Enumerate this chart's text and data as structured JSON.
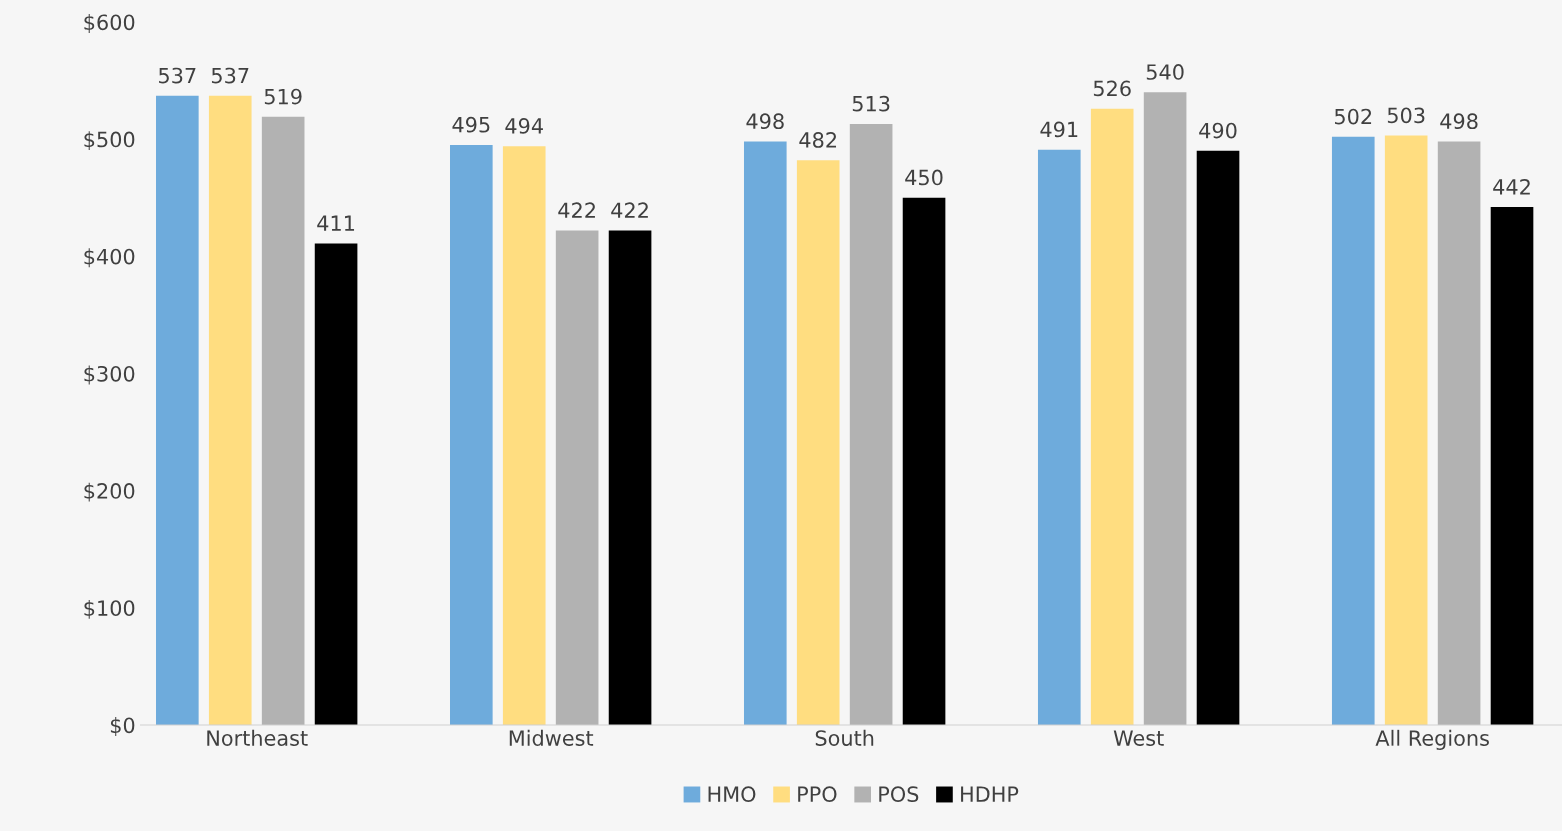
{
  "chart_data": {
    "type": "bar",
    "categories": [
      "Northeast",
      "Midwest",
      "South",
      "West",
      "All Regions"
    ],
    "series": [
      {
        "name": "HMO",
        "color": "#6eabdc",
        "values": [
          537,
          495,
          498,
          491,
          502
        ]
      },
      {
        "name": "PPO",
        "color": "#ffdd80",
        "values": [
          537,
          494,
          482,
          526,
          503
        ]
      },
      {
        "name": "POS",
        "color": "#b2b2b2",
        "values": [
          519,
          422,
          513,
          540,
          498
        ]
      },
      {
        "name": "HDHP",
        "color": "#000000",
        "values": [
          411,
          422,
          450,
          490,
          442
        ]
      }
    ],
    "ylim": [
      0,
      600
    ],
    "yticks": [
      {
        "value": 0,
        "label": "$0"
      },
      {
        "value": 100,
        "label": "$100"
      },
      {
        "value": 200,
        "label": "$200"
      },
      {
        "value": 300,
        "label": "$300"
      },
      {
        "value": 400,
        "label": "$400"
      },
      {
        "value": 500,
        "label": "$500"
      },
      {
        "value": 600,
        "label": "$600"
      }
    ],
    "data_labels": true,
    "grid": false,
    "legend": "bottom"
  }
}
